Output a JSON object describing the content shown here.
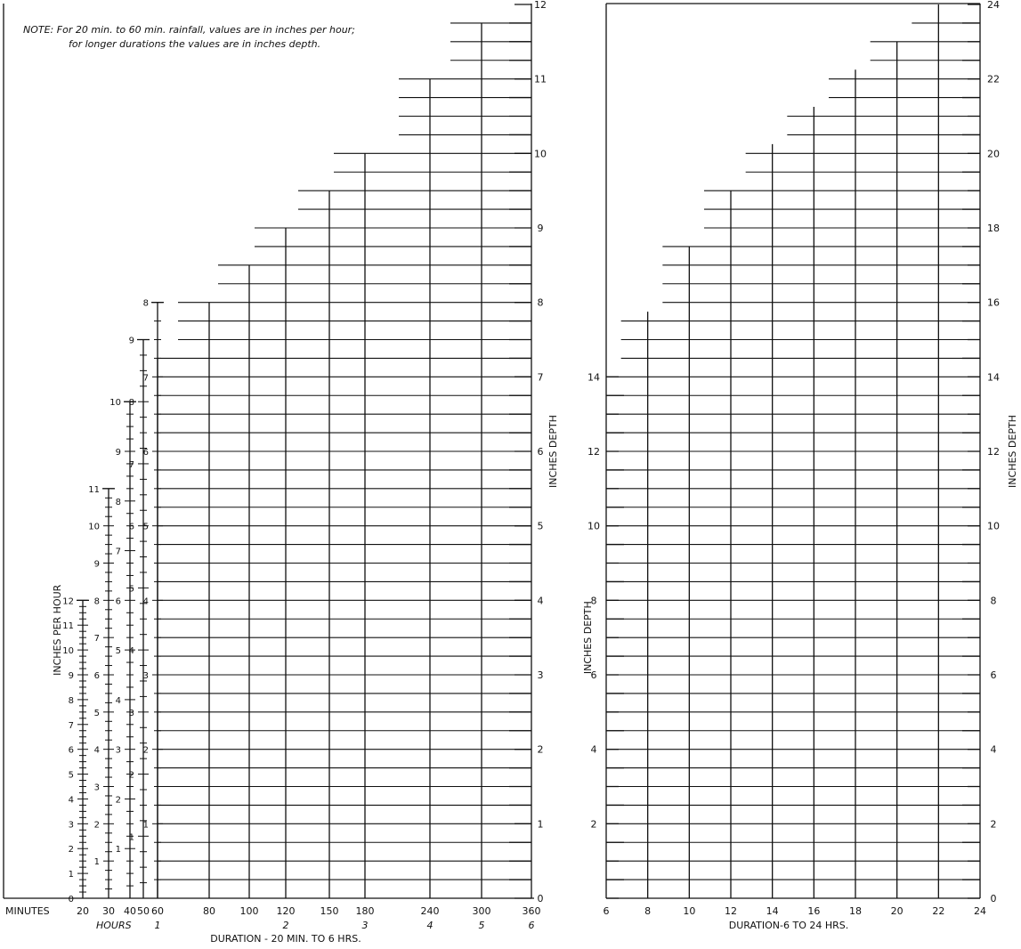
{
  "note": {
    "label": "NOTE:",
    "line1": "For 20 min. to 60 min. rainfall, values are in inches per hour;",
    "line2": "for longer durations the values are in inches depth."
  },
  "chart_data": [
    {
      "type": "scale-chart",
      "xlabel": "DURATION - 20 MIN. TO 6 HRS.",
      "x_row1_label": "MINUTES",
      "x_row2_label": "HOURS",
      "x_minutes": [
        "20",
        "30",
        "40",
        "50",
        "60",
        "80",
        "100",
        "120",
        "150",
        "180",
        "240",
        "300",
        "360"
      ],
      "x_hours": [
        {
          "label": "1",
          "minutes": 60
        },
        {
          "label": "2",
          "minutes": 120
        },
        {
          "label": "3",
          "minutes": 180
        },
        {
          "label": "4",
          "minutes": 240
        },
        {
          "label": "5",
          "minutes": 300
        },
        {
          "label": "6",
          "minutes": 360
        }
      ],
      "right_axis_label": "INCHES DEPTH",
      "right_axis_ticks": [
        "0",
        "1",
        "2",
        "3",
        "4",
        "5",
        "6",
        "7",
        "8",
        "9",
        "10",
        "11",
        "12"
      ],
      "ylim": [
        0,
        12
      ],
      "left_axis_label": "INCHES PER HOUR",
      "rate_scales": [
        {
          "minutes": 20,
          "max": 12,
          "labels": [
            "0",
            "1",
            "2",
            "3",
            "4",
            "5",
            "6",
            "7",
            "8",
            "9",
            "10",
            "11",
            "12"
          ]
        },
        {
          "minutes": 30,
          "max": 11,
          "labels": [
            "1",
            "2",
            "3",
            "4",
            "5",
            "6",
            "7",
            "8",
            "9",
            "10",
            "11"
          ]
        },
        {
          "minutes": 40,
          "max": 10,
          "labels": [
            "1",
            "2",
            "3",
            "4",
            "5",
            "6",
            "7",
            "8",
            "9",
            "10"
          ]
        },
        {
          "minutes": 50,
          "max": 9,
          "labels": [
            "1",
            "2",
            "3",
            "4",
            "5",
            "6",
            "7",
            "8",
            "9"
          ]
        },
        {
          "minutes": 60,
          "max": 8,
          "labels": [
            "1",
            "2",
            "3",
            "4",
            "5",
            "6",
            "7",
            "8"
          ]
        }
      ],
      "duration_max_depth": [
        {
          "minutes": 80,
          "depth": 8
        },
        {
          "minutes": 100,
          "depth": 8.5
        },
        {
          "minutes": 120,
          "depth": 9
        },
        {
          "minutes": 150,
          "depth": 9.5
        },
        {
          "minutes": 180,
          "depth": 10
        },
        {
          "minutes": 240,
          "depth": 11
        },
        {
          "minutes": 300,
          "depth": 11.75
        }
      ]
    },
    {
      "type": "scale-chart",
      "xlabel": "DURATION-6 TO 24 HRS.",
      "x_ticks": [
        "6",
        "8",
        "10",
        "12",
        "14",
        "16",
        "18",
        "20",
        "22",
        "24"
      ],
      "left_axis_label": "INCHES DEPTH",
      "left_axis_ticks": [
        "2",
        "4",
        "6",
        "8",
        "10",
        "12",
        "14"
      ],
      "right_axis_label": "INCHES DEPTH",
      "right_axis_ticks": [
        "0",
        "2",
        "4",
        "6",
        "8",
        "10",
        "12",
        "14",
        "16",
        "18",
        "20",
        "22",
        "24"
      ],
      "ylim": [
        0,
        24
      ],
      "duration_max_depth": [
        {
          "hours": 8,
          "depth": 15.75
        },
        {
          "hours": 10,
          "depth": 17.5
        },
        {
          "hours": 12,
          "depth": 19
        },
        {
          "hours": 14,
          "depth": 20.25
        },
        {
          "hours": 16,
          "depth": 21.25
        },
        {
          "hours": 18,
          "depth": 22.25
        },
        {
          "hours": 20,
          "depth": 23
        },
        {
          "hours": 22,
          "depth": 24
        }
      ]
    }
  ]
}
